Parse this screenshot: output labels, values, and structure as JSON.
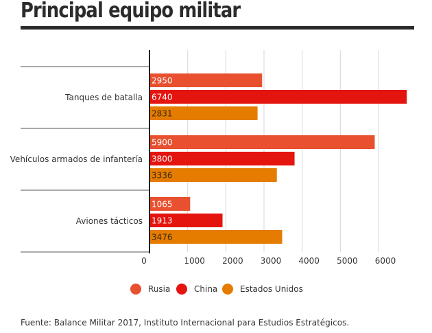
{
  "title": "Principal equipo militar",
  "source": "Fuente: Balance Militar 2017, Instituto Internacional para Estudios Estratégicos.",
  "chart_data": {
    "type": "bar",
    "orientation": "horizontal",
    "categories": [
      "Tanques de batalla",
      "Vehículos armados de infantería",
      "Aviones tácticos"
    ],
    "series": [
      {
        "name": "Rusia",
        "color": "#e8502f",
        "values": [
          2950,
          5900,
          1065
        ]
      },
      {
        "name": "China",
        "color": "#e4140f",
        "values": [
          6740,
          3800,
          1913
        ]
      },
      {
        "name": "Estados Unidos",
        "color": "#e57c00",
        "values": [
          2831,
          3336,
          3476
        ]
      }
    ],
    "xticks": [
      0,
      1000,
      2000,
      3000,
      4000,
      5000,
      6000
    ],
    "xlim": [
      0,
      7000
    ],
    "grid": true,
    "legend_position": "bottom-center",
    "data_labels": true
  }
}
